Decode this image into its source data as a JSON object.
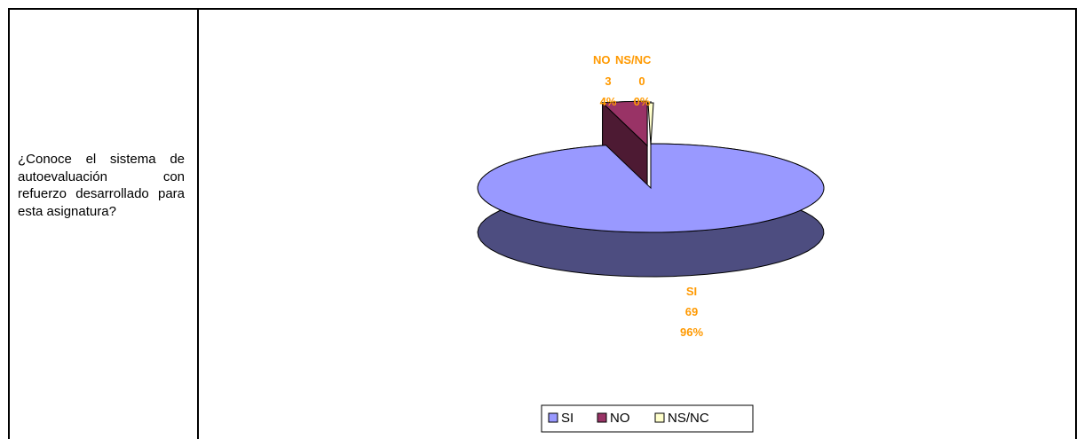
{
  "table": {
    "question": "¿Conoce el sistema de autoevaluación con refuerzo desarrollado para esta asignatura?"
  },
  "chart_data": {
    "type": "pie",
    "categories": [
      "SI",
      "NO",
      "NS/NC"
    ],
    "values": [
      69,
      3,
      0
    ],
    "percent_labels": [
      "96%",
      "4%",
      "0%"
    ],
    "colors": [
      "#9999ff",
      "#993366",
      "#ffffcc"
    ],
    "side_colors": [
      "#4d4d80",
      "#4d1a33",
      "#80806a"
    ],
    "legend": "bottom"
  }
}
